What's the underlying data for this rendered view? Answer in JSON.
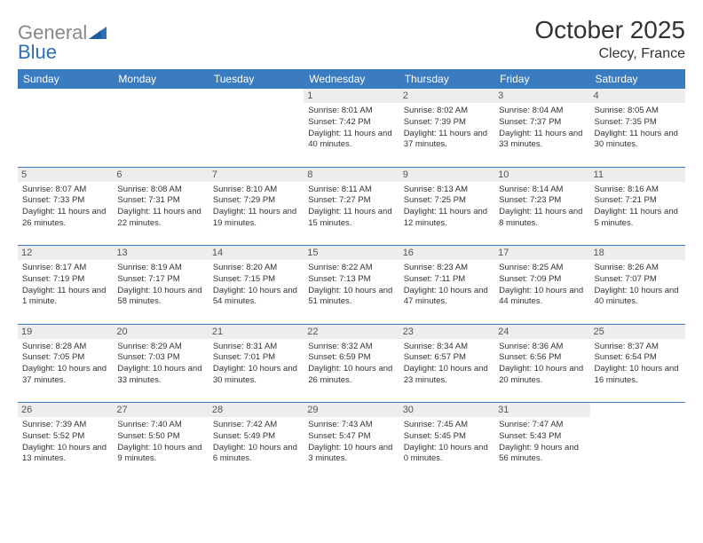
{
  "logo": {
    "general": "General",
    "blue": "Blue"
  },
  "title": "October 2025",
  "location": "Clecy, France",
  "colors": {
    "header_bg": "#3b7bbf",
    "header_text": "#ffffff",
    "daynum_bg": "#ededed",
    "daynum_text": "#555555",
    "body_text": "#333333",
    "logo_gray": "#888888",
    "logo_blue": "#2d6fb5",
    "divider": "#3b7bbf",
    "page_bg": "#ffffff"
  },
  "day_headers": [
    "Sunday",
    "Monday",
    "Tuesday",
    "Wednesday",
    "Thursday",
    "Friday",
    "Saturday"
  ],
  "weeks": [
    [
      {
        "empty": true
      },
      {
        "empty": true
      },
      {
        "empty": true
      },
      {
        "num": "1",
        "sunrise": "Sunrise: 8:01 AM",
        "sunset": "Sunset: 7:42 PM",
        "daylight": "Daylight: 11 hours and 40 minutes."
      },
      {
        "num": "2",
        "sunrise": "Sunrise: 8:02 AM",
        "sunset": "Sunset: 7:39 PM",
        "daylight": "Daylight: 11 hours and 37 minutes."
      },
      {
        "num": "3",
        "sunrise": "Sunrise: 8:04 AM",
        "sunset": "Sunset: 7:37 PM",
        "daylight": "Daylight: 11 hours and 33 minutes."
      },
      {
        "num": "4",
        "sunrise": "Sunrise: 8:05 AM",
        "sunset": "Sunset: 7:35 PM",
        "daylight": "Daylight: 11 hours and 30 minutes."
      }
    ],
    [
      {
        "num": "5",
        "sunrise": "Sunrise: 8:07 AM",
        "sunset": "Sunset: 7:33 PM",
        "daylight": "Daylight: 11 hours and 26 minutes."
      },
      {
        "num": "6",
        "sunrise": "Sunrise: 8:08 AM",
        "sunset": "Sunset: 7:31 PM",
        "daylight": "Daylight: 11 hours and 22 minutes."
      },
      {
        "num": "7",
        "sunrise": "Sunrise: 8:10 AM",
        "sunset": "Sunset: 7:29 PM",
        "daylight": "Daylight: 11 hours and 19 minutes."
      },
      {
        "num": "8",
        "sunrise": "Sunrise: 8:11 AM",
        "sunset": "Sunset: 7:27 PM",
        "daylight": "Daylight: 11 hours and 15 minutes."
      },
      {
        "num": "9",
        "sunrise": "Sunrise: 8:13 AM",
        "sunset": "Sunset: 7:25 PM",
        "daylight": "Daylight: 11 hours and 12 minutes."
      },
      {
        "num": "10",
        "sunrise": "Sunrise: 8:14 AM",
        "sunset": "Sunset: 7:23 PM",
        "daylight": "Daylight: 11 hours and 8 minutes."
      },
      {
        "num": "11",
        "sunrise": "Sunrise: 8:16 AM",
        "sunset": "Sunset: 7:21 PM",
        "daylight": "Daylight: 11 hours and 5 minutes."
      }
    ],
    [
      {
        "num": "12",
        "sunrise": "Sunrise: 8:17 AM",
        "sunset": "Sunset: 7:19 PM",
        "daylight": "Daylight: 11 hours and 1 minute."
      },
      {
        "num": "13",
        "sunrise": "Sunrise: 8:19 AM",
        "sunset": "Sunset: 7:17 PM",
        "daylight": "Daylight: 10 hours and 58 minutes."
      },
      {
        "num": "14",
        "sunrise": "Sunrise: 8:20 AM",
        "sunset": "Sunset: 7:15 PM",
        "daylight": "Daylight: 10 hours and 54 minutes."
      },
      {
        "num": "15",
        "sunrise": "Sunrise: 8:22 AM",
        "sunset": "Sunset: 7:13 PM",
        "daylight": "Daylight: 10 hours and 51 minutes."
      },
      {
        "num": "16",
        "sunrise": "Sunrise: 8:23 AM",
        "sunset": "Sunset: 7:11 PM",
        "daylight": "Daylight: 10 hours and 47 minutes."
      },
      {
        "num": "17",
        "sunrise": "Sunrise: 8:25 AM",
        "sunset": "Sunset: 7:09 PM",
        "daylight": "Daylight: 10 hours and 44 minutes."
      },
      {
        "num": "18",
        "sunrise": "Sunrise: 8:26 AM",
        "sunset": "Sunset: 7:07 PM",
        "daylight": "Daylight: 10 hours and 40 minutes."
      }
    ],
    [
      {
        "num": "19",
        "sunrise": "Sunrise: 8:28 AM",
        "sunset": "Sunset: 7:05 PM",
        "daylight": "Daylight: 10 hours and 37 minutes."
      },
      {
        "num": "20",
        "sunrise": "Sunrise: 8:29 AM",
        "sunset": "Sunset: 7:03 PM",
        "daylight": "Daylight: 10 hours and 33 minutes."
      },
      {
        "num": "21",
        "sunrise": "Sunrise: 8:31 AM",
        "sunset": "Sunset: 7:01 PM",
        "daylight": "Daylight: 10 hours and 30 minutes."
      },
      {
        "num": "22",
        "sunrise": "Sunrise: 8:32 AM",
        "sunset": "Sunset: 6:59 PM",
        "daylight": "Daylight: 10 hours and 26 minutes."
      },
      {
        "num": "23",
        "sunrise": "Sunrise: 8:34 AM",
        "sunset": "Sunset: 6:57 PM",
        "daylight": "Daylight: 10 hours and 23 minutes."
      },
      {
        "num": "24",
        "sunrise": "Sunrise: 8:36 AM",
        "sunset": "Sunset: 6:56 PM",
        "daylight": "Daylight: 10 hours and 20 minutes."
      },
      {
        "num": "25",
        "sunrise": "Sunrise: 8:37 AM",
        "sunset": "Sunset: 6:54 PM",
        "daylight": "Daylight: 10 hours and 16 minutes."
      }
    ],
    [
      {
        "num": "26",
        "sunrise": "Sunrise: 7:39 AM",
        "sunset": "Sunset: 5:52 PM",
        "daylight": "Daylight: 10 hours and 13 minutes."
      },
      {
        "num": "27",
        "sunrise": "Sunrise: 7:40 AM",
        "sunset": "Sunset: 5:50 PM",
        "daylight": "Daylight: 10 hours and 9 minutes."
      },
      {
        "num": "28",
        "sunrise": "Sunrise: 7:42 AM",
        "sunset": "Sunset: 5:49 PM",
        "daylight": "Daylight: 10 hours and 6 minutes."
      },
      {
        "num": "29",
        "sunrise": "Sunrise: 7:43 AM",
        "sunset": "Sunset: 5:47 PM",
        "daylight": "Daylight: 10 hours and 3 minutes."
      },
      {
        "num": "30",
        "sunrise": "Sunrise: 7:45 AM",
        "sunset": "Sunset: 5:45 PM",
        "daylight": "Daylight: 10 hours and 0 minutes."
      },
      {
        "num": "31",
        "sunrise": "Sunrise: 7:47 AM",
        "sunset": "Sunset: 5:43 PM",
        "daylight": "Daylight: 9 hours and 56 minutes."
      },
      {
        "empty": true
      }
    ]
  ]
}
